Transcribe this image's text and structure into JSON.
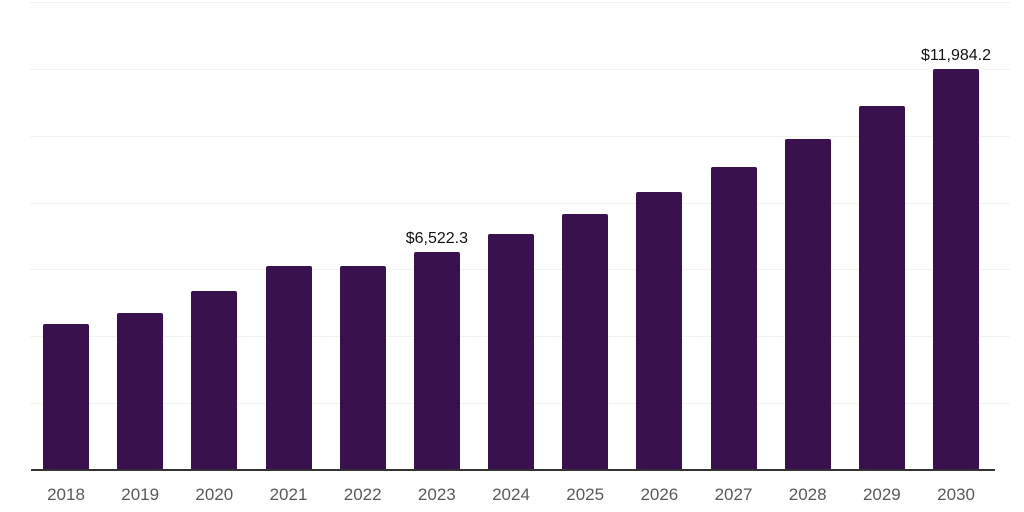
{
  "chart_data": {
    "type": "bar",
    "title": "",
    "xlabel": "",
    "ylabel": "",
    "categories": [
      "2018",
      "2019",
      "2020",
      "2021",
      "2022",
      "2023",
      "2024",
      "2025",
      "2026",
      "2027",
      "2028",
      "2029",
      "2030"
    ],
    "values": [
      4370,
      4700,
      5350,
      6110,
      6090,
      6522.3,
      7070,
      7670,
      8330,
      9060,
      9900,
      10900,
      11984.2
    ],
    "data_labels": [
      null,
      null,
      null,
      null,
      null,
      "$6,522.3",
      null,
      null,
      null,
      null,
      null,
      null,
      "$11,984.2"
    ],
    "ylim": [
      0,
      14000
    ],
    "gridline_step": 2000,
    "grid": true,
    "legend": false,
    "y_tick_labels_shown": false,
    "colors": {
      "bar": "#38114E",
      "data_label": "#111111",
      "tick_label": "#595959",
      "gridline": "#f2f2f2",
      "axis_line": "#333333",
      "background": "#ffffff"
    }
  }
}
